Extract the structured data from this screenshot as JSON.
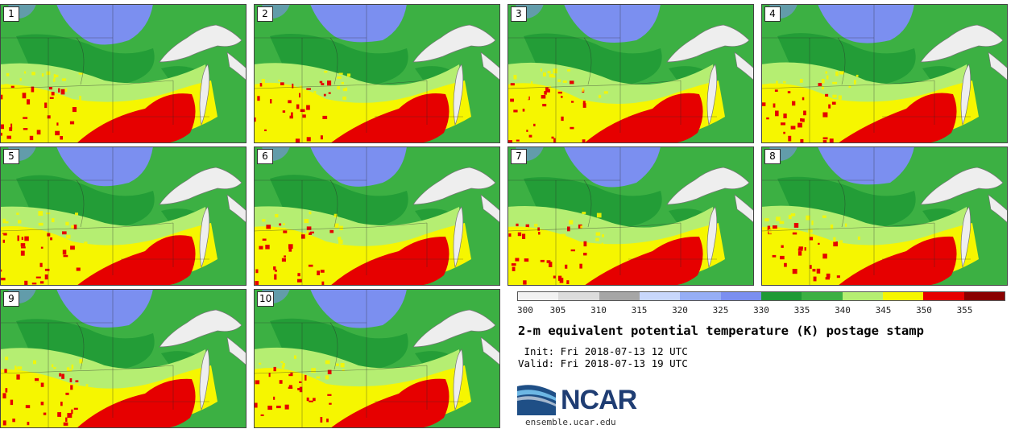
{
  "panels": [
    {
      "label": "1"
    },
    {
      "label": "2"
    },
    {
      "label": "3"
    },
    {
      "label": "4"
    },
    {
      "label": "5"
    },
    {
      "label": "6"
    },
    {
      "label": "7"
    },
    {
      "label": "8"
    },
    {
      "label": "9"
    },
    {
      "label": "10"
    }
  ],
  "colorbar": {
    "ticks": [
      "300",
      "305",
      "310",
      "315",
      "320",
      "325",
      "330",
      "335",
      "340",
      "345",
      "350",
      "355"
    ],
    "colors": [
      "#f2f2f2",
      "#dcdcdc",
      "#a6a6a6",
      "#c8d7fb",
      "#96aef5",
      "#7b8ff0",
      "#1f9a35",
      "#3cb043",
      "#b5ee72",
      "#f6f600",
      "#e60000",
      "#8a0000"
    ]
  },
  "map_colors": {
    "base": "#3cb043",
    "dark_green": "#1f9a35",
    "light_green": "#b5ee72",
    "yellow": "#f6f600",
    "red": "#e60000",
    "blue": "#7b8ff0",
    "lake": "#eeeeee"
  },
  "title": "2-m equivalent potential temperature (K) postage stamp",
  "init": " Init: Fri 2018-07-13 12 UTC",
  "valid": "Valid: Fri 2018-07-13 19 UTC",
  "logo": {
    "text": "NCAR",
    "site": "ensemble.ucar.edu"
  }
}
